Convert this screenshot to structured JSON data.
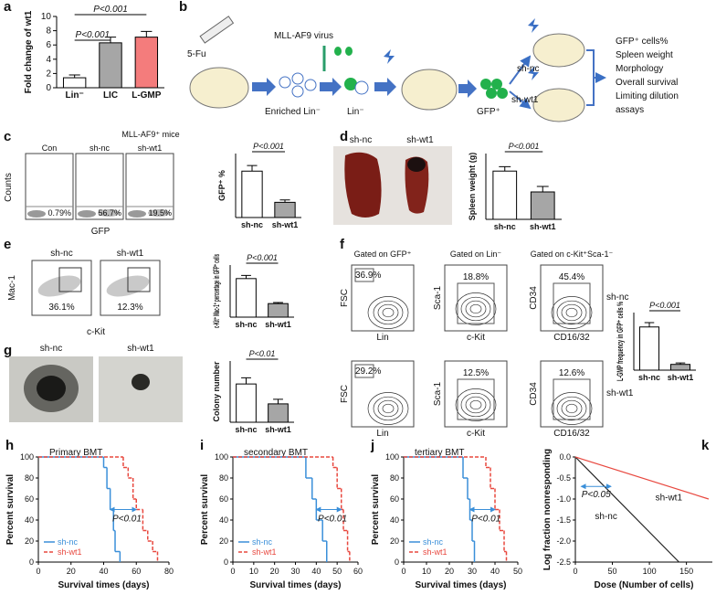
{
  "figure": {
    "b": {
      "label": "b",
      "syringe": "5-Fu",
      "virus": "MLL-AF9 virus",
      "enriched": "Enriched Lin⁻",
      "lin": "Lin⁻",
      "gfp": "GFP⁺",
      "groups": [
        "sh-nc",
        "sh-wt1"
      ],
      "outcomes": [
        "GFP⁺ cells%",
        "Spleen weight",
        "Morphology",
        "Overall survival",
        "Limiting dilution",
        "assays"
      ]
    },
    "c": {
      "label": "c",
      "header": "MLL-AF9⁺ mice",
      "plots": [
        {
          "title": "Con",
          "value": "0.79%"
        },
        {
          "title": "sh-nc",
          "value": "56.7%"
        },
        {
          "title": "sh-wt1",
          "value": "19.5%"
        }
      ],
      "ylabel": "Counts",
      "xlabel": "GFP"
    },
    "d": {
      "label": "d",
      "photos": [
        "sh-nc",
        "sh-wt1"
      ]
    },
    "e": {
      "label": "e",
      "plots": [
        {
          "title": "sh-nc",
          "value": "36.1%"
        },
        {
          "title": "sh-wt1",
          "value": "12.3%"
        }
      ],
      "ylabel": "Mac-1",
      "xlabel": "c-Kit"
    },
    "f": {
      "label": "f",
      "gates": [
        "Gated on GFP⁺",
        "Gated on Lin⁻",
        "Gated on c-Kit⁺Sca-1⁻"
      ],
      "axes": [
        {
          "y": "FSC",
          "x": "Lin"
        },
        {
          "y": "Sca-1",
          "x": "c-Kit"
        },
        {
          "y": "CD34",
          "x": "CD16/32"
        }
      ],
      "rows": [
        {
          "group": "sh-nc",
          "values": [
            "36.9%",
            "18.8%",
            "45.4%"
          ]
        },
        {
          "group": "sh-wt1",
          "values": [
            "29.2%",
            "12.5%",
            "12.6%"
          ]
        }
      ]
    },
    "g": {
      "label": "g",
      "photos": [
        "sh-nc",
        "sh-wt1"
      ]
    }
  },
  "chart_data": [
    {
      "type": "bar",
      "label": "a",
      "ylabel": "Fold change of wt1",
      "categories": [
        "Lin⁻",
        "LIC",
        "L-GMP"
      ],
      "values": [
        1.4,
        6.3,
        7.1
      ],
      "errors": [
        0.4,
        0.8,
        0.8
      ],
      "colors": [
        "#ffffff",
        "#a6a6a6",
        "#f47c7c"
      ],
      "ylim": [
        0,
        10
      ],
      "yticks": [
        0,
        2,
        4,
        6,
        8,
        10
      ],
      "annotations": [
        "P<0.001",
        "P<0.001"
      ]
    },
    {
      "type": "bar",
      "ylabel": "GFP⁺ %",
      "categories": [
        "sh-nc",
        "sh-wt1"
      ],
      "values": [
        58,
        19
      ],
      "errors": [
        7,
        3
      ],
      "colors": [
        "#ffffff",
        "#a6a6a6"
      ],
      "ylim": [
        0,
        80
      ],
      "annotations": [
        "P<0.001"
      ]
    },
    {
      "type": "bar",
      "ylabel": "Spleen weight (g)",
      "categories": [
        "sh-nc",
        "sh-wt1"
      ],
      "values": [
        0.44,
        0.25
      ],
      "errors": [
        0.04,
        0.05
      ],
      "colors": [
        "#ffffff",
        "#a6a6a6"
      ],
      "ylim": [
        0,
        0.6
      ],
      "annotations": [
        "P<0.001"
      ]
    },
    {
      "type": "bar",
      "ylabel": "c-Kit⁺ Mac-1⁺ percentage in GFP⁺ cells",
      "categories": [
        "sh-nc",
        "sh-wt1"
      ],
      "values": [
        37,
        13
      ],
      "errors": [
        3,
        1
      ],
      "colors": [
        "#ffffff",
        "#a6a6a6"
      ],
      "ylim": [
        0,
        50
      ],
      "annotations": [
        "P<0.001"
      ]
    },
    {
      "type": "bar",
      "ylabel": "L-GMP frequency in GFP⁺ cells %",
      "categories": [
        "sh-nc",
        "sh-wt1"
      ],
      "values": [
        3.0,
        0.4
      ],
      "errors": [
        0.3,
        0.1
      ],
      "colors": [
        "#ffffff",
        "#a6a6a6"
      ],
      "ylim": [
        0,
        4
      ],
      "annotations": [
        "P<0.001"
      ]
    },
    {
      "type": "bar",
      "ylabel": "Colony number",
      "categories": [
        "sh-nc",
        "sh-wt1"
      ],
      "values": [
        125,
        60
      ],
      "errors": [
        20,
        15
      ],
      "colors": [
        "#ffffff",
        "#a6a6a6"
      ],
      "ylim": [
        0,
        200
      ],
      "annotations": [
        "P<0.01"
      ]
    },
    {
      "type": "step",
      "label": "h",
      "title": "Primary BMT",
      "xlabel": "Survival times (days)",
      "ylabel": "Percent survival",
      "xlim": [
        0,
        80
      ],
      "xticks": [
        0,
        20,
        40,
        60,
        80
      ],
      "ylim": [
        0,
        100
      ],
      "yticks": [
        0,
        20,
        40,
        60,
        80,
        100
      ],
      "annotation": "P<0.01",
      "series": [
        {
          "name": "sh-nc",
          "color": "#3a8fd9",
          "line_style": "solid",
          "x": [
            0,
            40,
            42,
            44,
            46,
            47,
            50
          ],
          "values": [
            100,
            90,
            70,
            50,
            30,
            10,
            0
          ]
        },
        {
          "name": "sh-wt1",
          "color": "#e8483f",
          "line_style": "dashed",
          "x": [
            0,
            52,
            55,
            58,
            60,
            64,
            67,
            70,
            73
          ],
          "values": [
            100,
            90,
            80,
            60,
            50,
            30,
            20,
            10,
            0
          ]
        }
      ]
    },
    {
      "type": "step",
      "label": "i",
      "title": "secondary BMT",
      "xlabel": "Survival times (days)",
      "ylabel": "Percent survival",
      "xlim": [
        0,
        60
      ],
      "xticks": [
        0,
        10,
        20,
        30,
        40,
        50,
        60
      ],
      "ylim": [
        0,
        100
      ],
      "yticks": [
        0,
        20,
        40,
        60,
        80,
        100
      ],
      "annotation": "P<0.01",
      "series": [
        {
          "name": "sh-nc",
          "color": "#3a8fd9",
          "line_style": "solid",
          "x": [
            0,
            35,
            38,
            40,
            43,
            45
          ],
          "values": [
            100,
            80,
            60,
            40,
            20,
            0
          ]
        },
        {
          "name": "sh-wt1",
          "color": "#e8483f",
          "line_style": "dashed",
          "x": [
            0,
            48,
            50,
            52,
            53,
            55,
            56
          ],
          "values": [
            100,
            90,
            70,
            50,
            30,
            10,
            0
          ]
        }
      ]
    },
    {
      "type": "step",
      "label": "j",
      "title": "tertiary BMT",
      "xlabel": "Survival times (days)",
      "ylabel": "Percent survival",
      "xlim": [
        0,
        50
      ],
      "xticks": [
        0,
        10,
        20,
        30,
        40,
        50
      ],
      "ylim": [
        0,
        100
      ],
      "yticks": [
        0,
        20,
        40,
        60,
        80,
        100
      ],
      "annotation": "P<0.01",
      "series": [
        {
          "name": "sh-nc",
          "color": "#3a8fd9",
          "line_style": "solid",
          "x": [
            0,
            26,
            28,
            29,
            30,
            31
          ],
          "values": [
            100,
            80,
            60,
            40,
            20,
            0
          ]
        },
        {
          "name": "sh-wt1",
          "color": "#e8483f",
          "line_style": "dashed",
          "x": [
            0,
            36,
            38,
            40,
            42,
            44,
            45
          ],
          "values": [
            100,
            90,
            70,
            50,
            30,
            10,
            0
          ]
        }
      ]
    },
    {
      "type": "line",
      "label": "k",
      "xlabel": "Dose (Number of cells)",
      "ylabel": "Log fraction nonresponding",
      "xlim": [
        0,
        185
      ],
      "xticks": [
        0,
        50,
        100,
        150
      ],
      "ylim": [
        -2.5,
        0
      ],
      "yticks": [
        {
          "value": 0,
          "label": "0.0"
        },
        -0.5,
        {
          "value": -1,
          "label": "-1.0"
        },
        -1.5,
        {
          "value": -2,
          "label": "-2.0"
        },
        -2.5
      ],
      "annotation": "P<0.05",
      "series": [
        {
          "name": "sh-nc",
          "color": "#222222",
          "x": [
            0,
            140
          ],
          "values": [
            0,
            -2.5
          ]
        },
        {
          "name": "sh-wt1",
          "color": "#e8483f",
          "x": [
            0,
            180
          ],
          "values": [
            0,
            -1.0
          ]
        }
      ]
    }
  ]
}
